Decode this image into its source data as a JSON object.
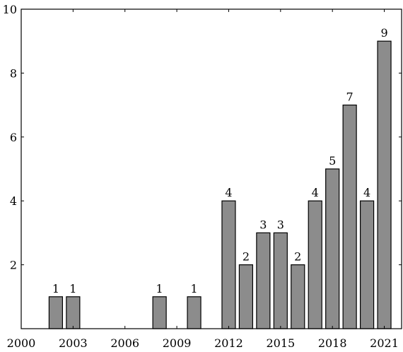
{
  "chart_data": {
    "type": "bar",
    "x": [
      2002,
      2003,
      2008,
      2010,
      2012,
      2013,
      2014,
      2015,
      2016,
      2017,
      2018,
      2019,
      2020,
      2021
    ],
    "values": [
      1,
      1,
      1,
      1,
      4,
      2,
      3,
      3,
      2,
      4,
      5,
      7,
      4,
      9
    ],
    "data_labels": [
      "1",
      "1",
      "1",
      "1",
      "4",
      "2",
      "3",
      "3",
      "2",
      "4",
      "5",
      "7",
      "4",
      "9"
    ],
    "x_ticks": [
      2000,
      2003,
      2006,
      2009,
      2012,
      2015,
      2018,
      2021
    ],
    "x_tick_labels": [
      "2000",
      "2003",
      "2006",
      "2009",
      "2012",
      "2015",
      "2018",
      "2021"
    ],
    "y_ticks": [
      2,
      4,
      6,
      8,
      10
    ],
    "y_tick_labels": [
      "2",
      "4",
      "6",
      "8",
      "10"
    ],
    "xlim": [
      2000,
      2022
    ],
    "ylim": [
      0,
      10
    ],
    "title": "",
    "xlabel": "",
    "ylabel": "",
    "grid": false,
    "bar_color": "#8c8c8c",
    "edge_color": "#000000"
  }
}
